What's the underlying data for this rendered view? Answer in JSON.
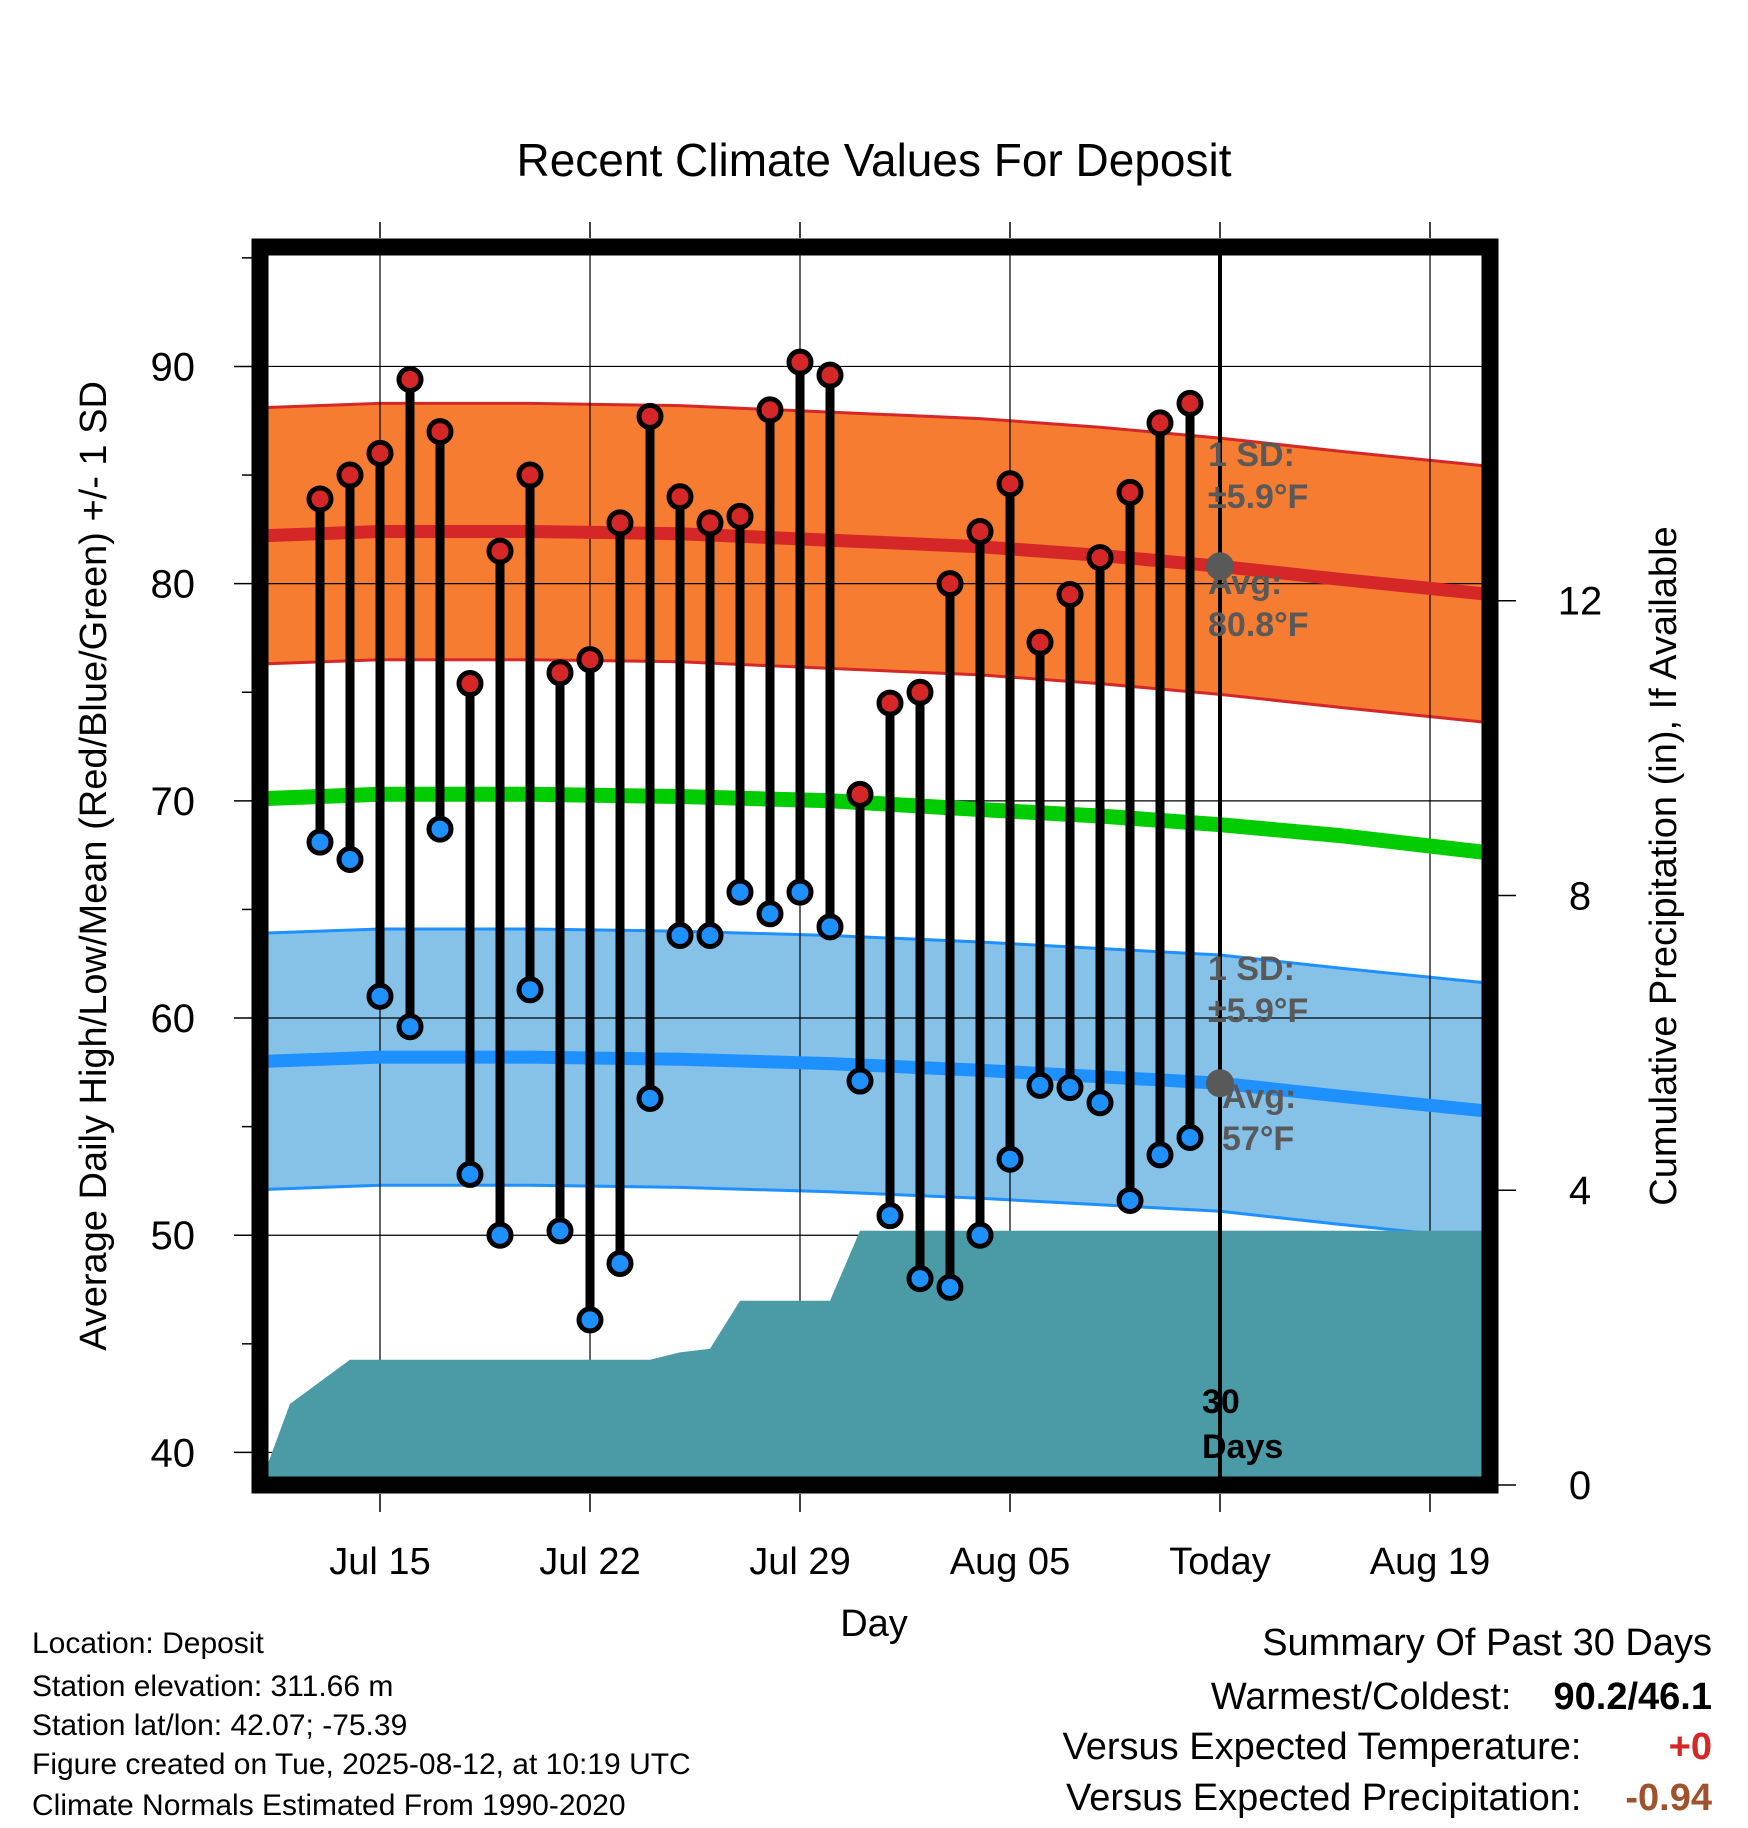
{
  "chart_data": {
    "type": "line",
    "title": "Recent Climate Values For Deposit",
    "xlabel": "Day",
    "ylabel_left": "Average Daily High/Low/Mean (Red/Blue/Green) +/- 1 SD",
    "ylabel_right": "Cumulative Precipitation (in), If Available",
    "ylim_left": [
      38.5,
      95.5
    ],
    "ylim_right": [
      0,
      16.8
    ],
    "xlim": [
      "2025-07-11",
      "2025-08-21"
    ],
    "x_ticks": [
      {
        "date": "2025-07-15",
        "label": "Jul 15"
      },
      {
        "date": "2025-07-22",
        "label": "Jul 22"
      },
      {
        "date": "2025-07-29",
        "label": "Jul 29"
      },
      {
        "date": "2025-08-05",
        "label": "Aug 05"
      },
      {
        "date": "2025-08-12",
        "label": "Today"
      },
      {
        "date": "2025-08-19",
        "label": "Aug 19"
      }
    ],
    "y_ticks_left": [
      40,
      50,
      60,
      70,
      80,
      90
    ],
    "y_ticks_right": [
      0,
      4,
      8,
      12
    ],
    "grid": true,
    "today": "2025-08-12",
    "dates": [
      "2025-07-13",
      "2025-07-14",
      "2025-07-15",
      "2025-07-16",
      "2025-07-17",
      "2025-07-18",
      "2025-07-19",
      "2025-07-20",
      "2025-07-21",
      "2025-07-22",
      "2025-07-23",
      "2025-07-24",
      "2025-07-25",
      "2025-07-26",
      "2025-07-27",
      "2025-07-28",
      "2025-07-29",
      "2025-07-30",
      "2025-07-31",
      "2025-08-01",
      "2025-08-02",
      "2025-08-03",
      "2025-08-04",
      "2025-08-05",
      "2025-08-06",
      "2025-08-07",
      "2025-08-08",
      "2025-08-09",
      "2025-08-10",
      "2025-08-11"
    ],
    "series": [
      {
        "name": "High",
        "color": "#d62728",
        "values": [
          83.9,
          85.0,
          86.0,
          89.4,
          87.0,
          75.4,
          81.5,
          85.0,
          75.9,
          76.5,
          82.8,
          87.7,
          84.0,
          82.8,
          83.1,
          88.0,
          90.2,
          89.6,
          70.3,
          74.5,
          75.0,
          80.0,
          82.4,
          84.6,
          77.3,
          79.5,
          81.2,
          84.2,
          87.4,
          88.3
        ]
      },
      {
        "name": "Low",
        "color": "#1e90ff",
        "values": [
          68.1,
          67.3,
          61.0,
          59.6,
          68.7,
          52.8,
          50.0,
          61.3,
          50.2,
          46.1,
          48.7,
          56.3,
          63.8,
          63.8,
          65.8,
          64.8,
          65.8,
          64.2,
          57.1,
          50.9,
          48.0,
          47.6,
          50.0,
          53.5,
          56.9,
          56.8,
          56.1,
          51.6,
          53.7,
          54.5
        ]
      }
    ],
    "normals": {
      "dates": [
        "2025-07-11",
        "2025-07-15",
        "2025-07-20",
        "2025-07-25",
        "2025-07-30",
        "2025-08-04",
        "2025-08-08",
        "2025-08-12",
        "2025-08-16",
        "2025-08-21"
      ],
      "high_avg": [
        82.2,
        82.4,
        82.4,
        82.3,
        82.0,
        81.7,
        81.3,
        80.8,
        80.2,
        79.5
      ],
      "low_avg": [
        58.0,
        58.2,
        58.2,
        58.1,
        57.9,
        57.6,
        57.3,
        57.0,
        56.4,
        55.7
      ],
      "mean_avg": [
        70.1,
        70.3,
        70.3,
        70.2,
        70.0,
        69.6,
        69.3,
        68.9,
        68.4,
        67.6
      ],
      "sd": 5.9
    },
    "precip_cumulative": {
      "dates": [
        "2025-07-11",
        "2025-07-12",
        "2025-07-13",
        "2025-07-14",
        "2025-07-24",
        "2025-07-25",
        "2025-07-26",
        "2025-07-27",
        "2025-07-30",
        "2025-07-31",
        "2025-08-21"
      ],
      "values": [
        0.0,
        1.1,
        1.4,
        1.7,
        1.7,
        1.8,
        1.85,
        2.5,
        2.5,
        3.45,
        3.45
      ]
    },
    "annotations": {
      "high_sd_label_1": "1 SD:",
      "high_sd_label_2": "±5.9°F",
      "high_avg_label_1": "Avg:",
      "high_avg_label_2": "80.8°F",
      "low_sd_label_1": "1 SD:",
      "low_sd_label_2": "±5.9°F",
      "low_avg_label_1": "Avg:",
      "low_avg_label_2": "57°F",
      "window_label_1": "30",
      "window_label_2": "Days"
    },
    "colors": {
      "high_band": "#f57c30",
      "high_line": "#d62728",
      "low_band": "#86c1e8",
      "low_line": "#1e90ff",
      "mean_line": "#00cc00",
      "precip": "#4a9ba6",
      "annotation": "#595959"
    }
  },
  "info": {
    "location": "Location: Deposit",
    "elevation": "Station elevation: 311.66 m",
    "latlon": "Station lat/lon: 42.07; -75.39",
    "created": "Figure created on Tue, 2025-08-12, at 10:19 UTC",
    "normals": "Climate Normals Estimated From 1990-2020"
  },
  "summary": {
    "title": "Summary Of Past 30 Days",
    "warmest_label": "Warmest/Coldest:",
    "warmest_value": "90.2/46.1",
    "temp_label": "Versus Expected Temperature:",
    "temp_value": "+0",
    "temp_color": "#d62728",
    "precip_label": "Versus Expected Precipitation:",
    "precip_value": "-0.94",
    "precip_color": "#a0522d"
  }
}
